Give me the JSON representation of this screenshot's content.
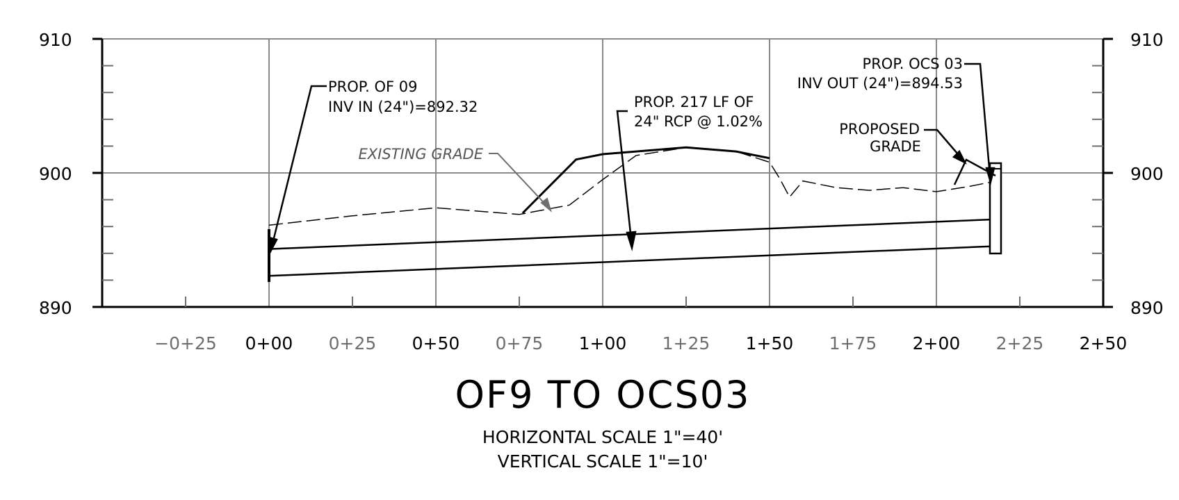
{
  "drawing": {
    "title": "OF9 TO OCS03",
    "horizontal_scale": "HORIZONTAL SCALE 1\"=40'",
    "vertical_scale": "VERTICAL SCALE 1\"=10'"
  },
  "axes": {
    "left_labels": [
      "910",
      "900",
      "890"
    ],
    "right_labels": [
      "910",
      "900",
      "890"
    ],
    "station_labels": [
      "−0+25",
      "0+00",
      "0+25",
      "0+50",
      "0+75",
      "1+00",
      "1+25",
      "1+50",
      "1+75",
      "2+00",
      "2+25",
      "2+50"
    ]
  },
  "annotations": {
    "of09_line1": "PROP. OF 09",
    "of09_line2": "INV IN (24\")=892.32",
    "pipe_line1": "PROP. 217 LF OF",
    "pipe_line2": "24\" RCP @ 1.02%",
    "ocs03_line1": "PROP. OCS 03",
    "ocs03_line2": "INV OUT (24\")=894.53",
    "proposed_grade_line1": "PROPOSED",
    "proposed_grade_line2": "GRADE",
    "existing_grade": "EXISTING GRADE"
  },
  "chart_data": {
    "type": "line",
    "x_unit": "station (ft)",
    "y_unit": "elevation (ft)",
    "xlim": [
      -50,
      250
    ],
    "ylim": [
      890,
      910
    ],
    "x_ticks": [
      -25,
      0,
      25,
      50,
      75,
      100,
      125,
      150,
      175,
      200,
      225,
      250
    ],
    "y_ticks": [
      890,
      900,
      910
    ],
    "series": [
      {
        "key": "existing_grade",
        "style": "dashed",
        "x": [
          0,
          25,
          50,
          75,
          90,
          100,
          110,
          125,
          140,
          150,
          153,
          156,
          160,
          170,
          180,
          190,
          200,
          210,
          218
        ],
        "y": [
          896.1,
          896.8,
          897.4,
          896.9,
          897.6,
          899.5,
          901.3,
          901.9,
          901.6,
          900.8,
          899.6,
          898.2,
          899.4,
          898.9,
          898.7,
          898.9,
          898.6,
          899.0,
          899.4
        ]
      },
      {
        "key": "proposed_grade",
        "style": "solid",
        "x": [
          76,
          92,
          100,
          125,
          140,
          150
        ],
        "y": [
          897.0,
          901.0,
          901.4,
          901.9,
          901.6,
          901.1
        ]
      },
      {
        "key": "pipe_crown",
        "style": "solid",
        "x": [
          0,
          217
        ],
        "y": [
          894.32,
          896.53
        ]
      },
      {
        "key": "pipe_invert",
        "style": "solid",
        "x": [
          0,
          217
        ],
        "y": [
          892.32,
          894.53
        ]
      }
    ]
  }
}
